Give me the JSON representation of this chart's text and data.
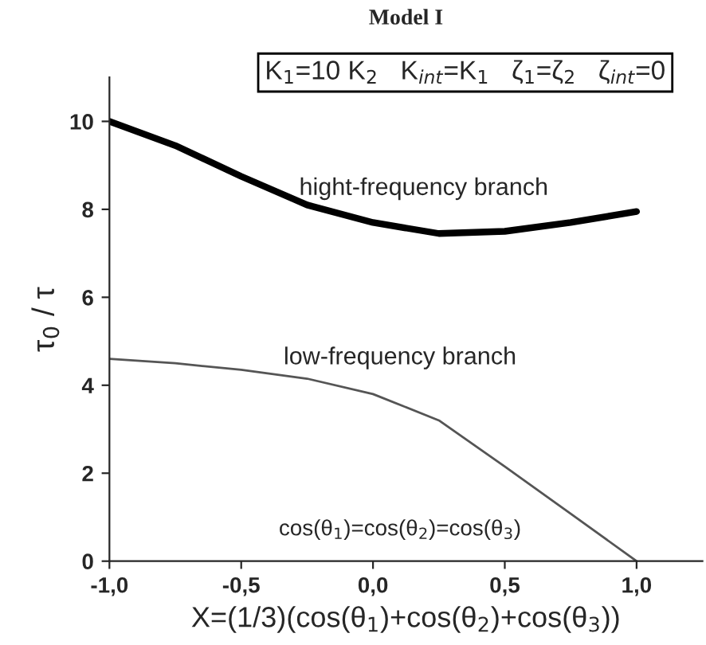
{
  "chart_data": {
    "type": "line",
    "title": "Model I",
    "xlabel": "X=(1/3)(cos(θ$_{1}$)+cos(θ$_{2}$)+cos(θ$_{3}$))",
    "ylabel": "τ$_{0}$ / τ",
    "x": [
      -1.0,
      -0.75,
      -0.5,
      -0.25,
      0.0,
      0.25,
      0.5,
      0.75,
      1.0
    ],
    "series": [
      {
        "color": "#000000",
        "values": [
          10.0,
          9.45,
          8.75,
          8.1,
          7.7,
          7.45,
          7.5,
          7.7,
          7.95
        ]
      },
      {
        "color": "#555555",
        "values": [
          4.6,
          4.5,
          4.35,
          4.15,
          3.8,
          3.2,
          2.15,
          1.08,
          0.0
        ]
      }
    ],
    "xlim": [
      -1.0,
      1.25
    ],
    "ylim": [
      0,
      11
    ],
    "xticks": [
      {
        "value": -1.0,
        "label": "-1,0"
      },
      {
        "value": -0.5,
        "label": "-0,5"
      },
      {
        "value": 0.0,
        "label": "0,0"
      },
      {
        "value": 0.5,
        "label": "0,5"
      },
      {
        "value": 1.0,
        "label": "1,0"
      }
    ],
    "yticks": [
      0,
      2,
      4,
      6,
      8,
      10
    ],
    "annotations": [
      "K$_{1}$=10 K$_{2}$   K$_{int}$=K$_{1}$   ζ$_{1}$=ζ$_{2}$   ζ$_{int}$=0",
      "hight-frequency branch",
      "low-frequency branch",
      "cos(θ$_{1}$)=cos(θ$_{2}$)=cos(θ$_{3}$)"
    ],
    "grid": false,
    "legend": false,
    "marker": "none",
    "line_style": "solid"
  }
}
